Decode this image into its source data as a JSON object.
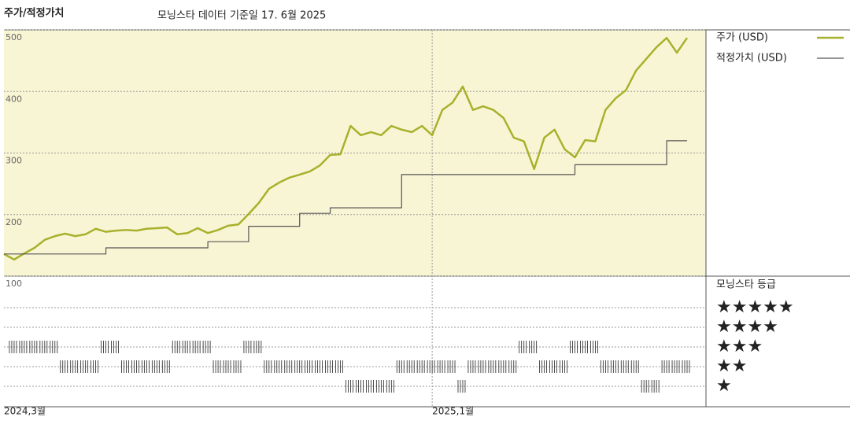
{
  "chart_data": {
    "type": "line",
    "title": "주가/적정가치",
    "subtitle": "모닝스타 데이터 기준일 17. 6월 2025",
    "categories": [
      null,
      null,
      null,
      null,
      null,
      null,
      null,
      null,
      null,
      null,
      null,
      null,
      null,
      null,
      null,
      null,
      null,
      null,
      null,
      null,
      null,
      null,
      null,
      null,
      null,
      null,
      null,
      null,
      null,
      null,
      null,
      null,
      null,
      null,
      null,
      null,
      null,
      null,
      null,
      null,
      null,
      null,
      null,
      null,
      null,
      null,
      null,
      null,
      null,
      null,
      null,
      null,
      null,
      null,
      null,
      null,
      null,
      null,
      null,
      null,
      null,
      null,
      null,
      null,
      null,
      null,
      null,
      null
    ],
    "category_labels": [
      {
        "index": 0,
        "label": "2024,3월"
      },
      {
        "index": 42,
        "label": "2025,1월"
      }
    ],
    "ylim": [
      100,
      500
    ],
    "yticks": [
      100,
      200,
      300,
      400,
      500
    ],
    "grid": true,
    "series": [
      {
        "name": "주가 (USD)",
        "color": "#a8b12c",
        "values": [
          136,
          127,
          137,
          146,
          159,
          165,
          169,
          165,
          168,
          177,
          172,
          174,
          175,
          174,
          177,
          178,
          179,
          168,
          170,
          178,
          170,
          175,
          182,
          184,
          201,
          219,
          242,
          252,
          260,
          265,
          270,
          280,
          297,
          298,
          344,
          329,
          334,
          329,
          344,
          338,
          334,
          344,
          329,
          370,
          382,
          408,
          370,
          376,
          370,
          357,
          325,
          319,
          274,
          325,
          338,
          306,
          293,
          321,
          319,
          370,
          389,
          402,
          434,
          453,
          472,
          487,
          463,
          487
        ]
      },
      {
        "name": "적정가치 (USD)",
        "color": "#555555",
        "step": true,
        "values": [
          136,
          136,
          136,
          136,
          136,
          136,
          136,
          136,
          136,
          136,
          146,
          146,
          146,
          146,
          146,
          146,
          146,
          146,
          146,
          146,
          156,
          156,
          156,
          156,
          181,
          181,
          181,
          181,
          181,
          202,
          202,
          202,
          211,
          211,
          211,
          211,
          211,
          211,
          211,
          265,
          265,
          265,
          265,
          265,
          265,
          265,
          265,
          265,
          265,
          265,
          265,
          265,
          265,
          265,
          265,
          265,
          281,
          281,
          281,
          281,
          281,
          281,
          281,
          281,
          281,
          320,
          320,
          320
        ]
      }
    ],
    "rating": {
      "title": "모닝스타 등급",
      "ticks": [
        {
          "value": 5,
          "label": "★★★★★"
        },
        {
          "value": 4,
          "label": "★★★★"
        },
        {
          "value": 3,
          "label": "★★★"
        },
        {
          "value": 2,
          "label": "★★"
        },
        {
          "value": 1,
          "label": "★"
        }
      ],
      "color": "#222222",
      "values": [
        null,
        3,
        3,
        3,
        3,
        3,
        2,
        2,
        2,
        2,
        3,
        3,
        2,
        2,
        2,
        2,
        2,
        3,
        3,
        3,
        3,
        2,
        2,
        2,
        3,
        3,
        2,
        2,
        2,
        2,
        2,
        2,
        2,
        2,
        1,
        1,
        1,
        1,
        1,
        2,
        2,
        2,
        2,
        2,
        2,
        1,
        2,
        2,
        2,
        2,
        2,
        3,
        3,
        2,
        2,
        2,
        3,
        3,
        3,
        2,
        2,
        2,
        2,
        1,
        1,
        2,
        2,
        2
      ]
    }
  }
}
